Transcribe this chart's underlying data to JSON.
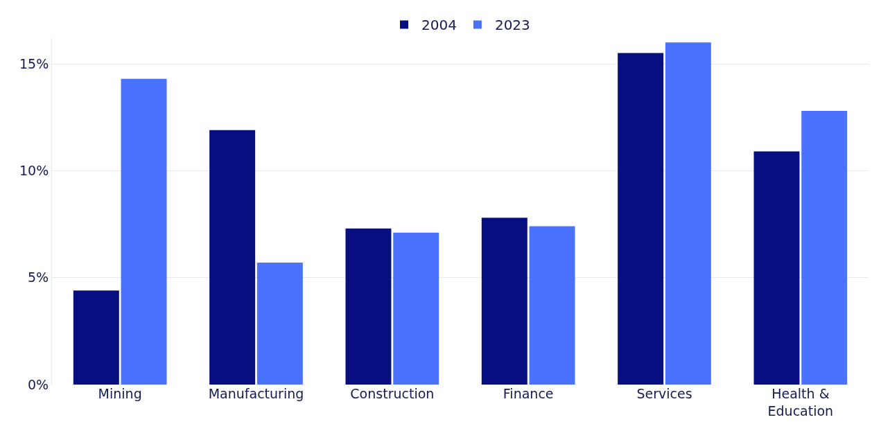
{
  "chart_data": {
    "type": "bar",
    "categories": [
      "Mining",
      "Manufacturing",
      "Construction",
      "Finance",
      "Services",
      "Health &\nEducation"
    ],
    "series": [
      {
        "name": "2004",
        "color": "#060e80",
        "values": [
          4.4,
          11.9,
          7.3,
          7.8,
          15.5,
          10.9
        ]
      },
      {
        "name": "2023",
        "color": "#4a72ff",
        "values": [
          14.3,
          5.7,
          7.1,
          7.4,
          16.0,
          12.8
        ]
      }
    ],
    "ylim": [
      0,
      16.2
    ],
    "yticks": [
      {
        "value": 0,
        "label": "0%"
      },
      {
        "value": 5,
        "label": "5%"
      },
      {
        "value": 10,
        "label": "10%"
      },
      {
        "value": 15,
        "label": "15%"
      }
    ],
    "grid": "y",
    "legend": "top"
  }
}
